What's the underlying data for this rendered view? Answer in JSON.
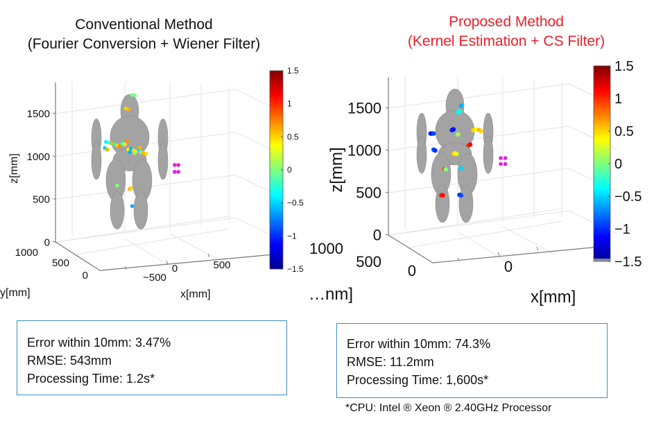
{
  "chart_data": [
    {
      "type": "scatter3d",
      "title": "Conventional Method",
      "subtitle": "(Fourier Conversion + Wiener Filter)",
      "title_color": "#111111",
      "xlabel": "x[mm]",
      "ylabel": "y[mm]",
      "zlabel": "z[mm]",
      "x_ticks": [
        "-500",
        "0",
        "500"
      ],
      "y_ticks": [
        "0",
        "500",
        "1000"
      ],
      "z_ticks": [
        "0",
        "500",
        "1000",
        "1500"
      ],
      "zlim": [
        0,
        1800
      ],
      "colorbar": {
        "colormap": "jet",
        "range": [
          -1.5,
          1.5
        ],
        "ticks": [
          "1.5",
          "1",
          "0.5",
          "0",
          "−0.5",
          "−1",
          "−1.5"
        ]
      },
      "reference_marker_color": "#e61ee6",
      "points": [
        {
          "x": -80,
          "z": 1720,
          "c": 0.0
        },
        {
          "x": -60,
          "z": 1715,
          "c": 0.0
        },
        {
          "x": -130,
          "z": 1560,
          "c": 0.5
        },
        {
          "x": -110,
          "z": 1550,
          "c": 0.6
        },
        {
          "x": -290,
          "z": 1170,
          "c": -0.4
        },
        {
          "x": -260,
          "z": 1160,
          "c": -0.2
        },
        {
          "x": -240,
          "z": 1150,
          "c": 0.6
        },
        {
          "x": -220,
          "z": 1140,
          "c": -0.3
        },
        {
          "x": -200,
          "z": 1130,
          "c": 0.5
        },
        {
          "x": -180,
          "z": 1120,
          "c": 0.7
        },
        {
          "x": -160,
          "z": 1150,
          "c": -0.2
        },
        {
          "x": -140,
          "z": 1140,
          "c": 0.4
        },
        {
          "x": -120,
          "z": 1180,
          "c": 0.7
        },
        {
          "x": -300,
          "z": 1100,
          "c": -0.5
        },
        {
          "x": -280,
          "z": 1080,
          "c": 0.6
        },
        {
          "x": -110,
          "z": 1080,
          "c": 0.4
        },
        {
          "x": -90,
          "z": 1090,
          "c": -0.6
        },
        {
          "x": -70,
          "z": 1070,
          "c": 0.5
        },
        {
          "x": -50,
          "z": 1060,
          "c": 0.3
        },
        {
          "x": -30,
          "z": 1080,
          "c": -0.5
        },
        {
          "x": -10,
          "z": 1050,
          "c": 0.0
        },
        {
          "x": 10,
          "z": 1040,
          "c": 0.6
        },
        {
          "x": 30,
          "z": 1030,
          "c": 0.5
        },
        {
          "x": -100,
          "z": 1050,
          "c": -0.6
        },
        {
          "x": -60,
          "z": 1040,
          "c": 0.1
        },
        {
          "x": -20,
          "z": 1100,
          "c": 0.6
        },
        {
          "x": -200,
          "z": 660,
          "c": 0.0
        },
        {
          "x": -100,
          "z": 620,
          "c": 0.6
        },
        {
          "x": -90,
          "z": 630,
          "c": 0.5
        },
        {
          "x": -80,
          "z": 420,
          "c": -0.6
        }
      ],
      "reference_points": [
        {
          "x": 260,
          "z": 900
        },
        {
          "x": 290,
          "z": 900
        },
        {
          "x": 260,
          "z": 820
        },
        {
          "x": 290,
          "z": 820
        }
      ],
      "metrics": {
        "error_within_10mm": "Error within 10mm: 3.47%",
        "rmse": "RMSE: 543mm",
        "processing_time": "Processing Time: 1.2s*"
      }
    },
    {
      "type": "scatter3d",
      "title": "Proposed Method",
      "subtitle": "(Kernel Estimation + CS Filter)",
      "title_color": "#e8202a",
      "xlabel": "x[mm]",
      "ylabel": "y[mm]",
      "ylabel_visible": "…nm]",
      "zlabel": "z[mm]",
      "x_ticks": [
        "0"
      ],
      "y_ticks": [
        "0",
        "500",
        "1000"
      ],
      "z_ticks": [
        "0",
        "500",
        "1000",
        "1500"
      ],
      "zlim": [
        0,
        1800
      ],
      "colorbar": {
        "colormap": "jet",
        "range": [
          -1.5,
          1.5
        ],
        "ticks": [
          "1.5",
          "1",
          "0.5",
          "0",
          "−0.5",
          "−1",
          "−1.5"
        ]
      },
      "reference_marker_color": "#e61ee6",
      "points": [
        {
          "x": -60,
          "z": 1530,
          "c": -0.6
        },
        {
          "x": -70,
          "z": 1460,
          "c": -0.3
        },
        {
          "x": -80,
          "z": 1455,
          "c": -0.4
        },
        {
          "x": -260,
          "z": 1200,
          "c": -1.0
        },
        {
          "x": -250,
          "z": 1200,
          "c": -1.1
        },
        {
          "x": -240,
          "z": 1200,
          "c": -0.9
        },
        {
          "x": -120,
          "z": 1240,
          "c": -1.0
        },
        {
          "x": -110,
          "z": 1250,
          "c": -1.1
        },
        {
          "x": -80,
          "z": 1190,
          "c": 0.1
        },
        {
          "x": 20,
          "z": 1240,
          "c": 0.5
        },
        {
          "x": 40,
          "z": 1250,
          "c": 0.4
        },
        {
          "x": 60,
          "z": 1240,
          "c": 0.6
        },
        {
          "x": 70,
          "z": 1230,
          "c": 0.5
        },
        {
          "x": -10,
          "z": 1060,
          "c": 1.0
        },
        {
          "x": 0,
          "z": 1070,
          "c": 1.1
        },
        {
          "x": -240,
          "z": 1010,
          "c": -0.9
        },
        {
          "x": -230,
          "z": 1000,
          "c": -1.0
        },
        {
          "x": -110,
          "z": 960,
          "c": 0.6
        },
        {
          "x": -100,
          "z": 965,
          "c": 0.4
        },
        {
          "x": -90,
          "z": 960,
          "c": 0.3
        },
        {
          "x": -170,
          "z": 780,
          "c": 0.9
        },
        {
          "x": -160,
          "z": 775,
          "c": 0.0
        },
        {
          "x": -60,
          "z": 790,
          "c": -0.5
        },
        {
          "x": -190,
          "z": 470,
          "c": 1.0
        },
        {
          "x": -180,
          "z": 470,
          "c": 1.1
        },
        {
          "x": -70,
          "z": 475,
          "c": -1.0
        },
        {
          "x": -60,
          "z": 470,
          "c": -0.9
        }
      ],
      "reference_points": [
        {
          "x": 200,
          "z": 910
        },
        {
          "x": 230,
          "z": 910
        },
        {
          "x": 200,
          "z": 840
        },
        {
          "x": 230,
          "z": 840
        }
      ],
      "metrics": {
        "error_within_10mm": "Error within 10mm: 74.3%",
        "rmse": "RMSE: 11.2mm",
        "processing_time": "Processing Time: 1,600s*"
      }
    }
  ],
  "footnote": "*CPU: Intel ® Xeon ® 2.40GHz Processor"
}
